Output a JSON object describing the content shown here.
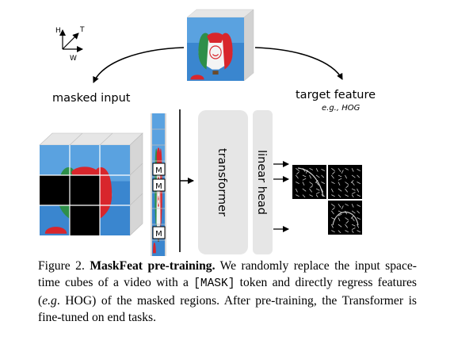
{
  "axes": {
    "h": "H",
    "t": "T",
    "w": "W"
  },
  "labels": {
    "masked_input": "masked input",
    "target_feature": "target feature",
    "target_example": "e.g., HOG",
    "transformer": "transformer",
    "linear_head": "linear head",
    "mask_token": "M"
  },
  "caption": {
    "figure_number": "Figure 2.",
    "title": "MaskFeat pre-training.",
    "text_1": " We randomly replace the input space-time cubes of a video with a ",
    "mask_token": "[MASK]",
    "text_2": " token and directly regress features (",
    "example": "e.g",
    "text_3": ". HOG) of the masked regions. After pre-training, the Transformer is fine-tuned on end tasks."
  },
  "colors": {
    "sky": "#2f7fc8",
    "sky_light": "#5aa2e0",
    "balloon_red": "#d8262c",
    "balloon_green": "#2e8f4a",
    "balloon_white": "#f4f4f4",
    "block": "#e6e6e6",
    "mask_patch": "#000000"
  }
}
